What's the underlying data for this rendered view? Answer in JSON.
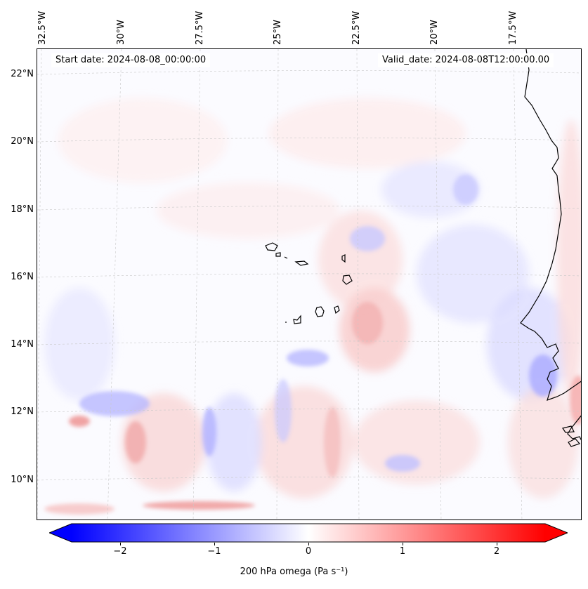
{
  "map": {
    "start_label": "Start date: 2024-08-08_00:00:00",
    "valid_label": "Valid_date: 2024-08-08T12:00:00.00",
    "longitude_labels": [
      "32.5°W",
      "30°W",
      "27.5°W",
      "25°W",
      "22.5°W",
      "20°W",
      "17.5°W"
    ],
    "latitude_labels": [
      "22°N",
      "20°N",
      "18°N",
      "16°N",
      "14°N",
      "12°N",
      "10°N"
    ],
    "extent": {
      "lon": [
        -33.0,
        -15.8
      ],
      "lat": [
        8.9,
        22.8
      ]
    },
    "colors": {
      "negative": "#0000ff",
      "zero": "#ffffff",
      "positive": "#ff0000",
      "coastline": "#000000"
    }
  },
  "colorbar": {
    "label": "200 hPa omega (Pa s⁻¹)",
    "ticks": [
      "−2",
      "−1",
      "0",
      "1",
      "2"
    ],
    "range": [
      -2.5,
      2.5
    ],
    "extend": "both"
  }
}
